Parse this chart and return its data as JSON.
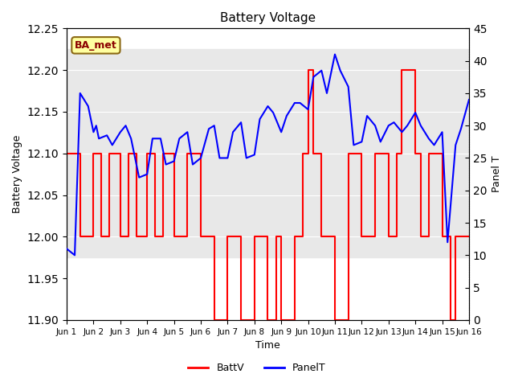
{
  "title": "Battery Voltage",
  "xlabel": "Time",
  "ylabel_left": "Battery Voltage",
  "ylabel_right": "Panel T",
  "ylim_left": [
    11.9,
    12.25
  ],
  "ylim_right": [
    0,
    45
  ],
  "yticks_left": [
    11.9,
    11.95,
    12.0,
    12.05,
    12.1,
    12.15,
    12.2,
    12.25
  ],
  "yticks_right": [
    0,
    5,
    10,
    15,
    20,
    25,
    30,
    35,
    40,
    45
  ],
  "xlim": [
    0,
    15
  ],
  "xtick_labels": [
    "Jun 1",
    "Jun 2",
    "Jun 3",
    "Jun 4",
    "Jun 5",
    "Jun 6",
    "Jun 7",
    "Jun 8",
    "Jun 9",
    "Jun 10",
    "Jun 11",
    "Jun 12",
    "Jun 13",
    "Jun 14",
    "Jun 15",
    "Jun 16"
  ],
  "xtick_positions": [
    0,
    1,
    2,
    3,
    4,
    5,
    6,
    7,
    8,
    9,
    10,
    11,
    12,
    13,
    14,
    15
  ],
  "batt_color": "#FF0000",
  "panel_color": "#0000FF",
  "bg_band_color": "#E8E8E8",
  "bg_band_ylim": [
    11.975,
    12.225
  ],
  "station_label": "BA_met",
  "station_label_color": "#8B0000",
  "station_label_bg": "#FFFFA0",
  "legend_loc": "lower center",
  "battv_x": [
    0.0,
    0.5,
    0.5,
    1.0,
    1.0,
    1.3,
    1.3,
    1.6,
    1.6,
    2.0,
    2.0,
    2.3,
    2.3,
    2.6,
    2.6,
    3.0,
    3.0,
    3.3,
    3.3,
    3.6,
    3.6,
    4.0,
    4.0,
    4.5,
    4.5,
    5.0,
    5.0,
    5.5,
    5.5,
    6.0,
    6.0,
    6.5,
    6.5,
    7.0,
    7.0,
    7.5,
    7.5,
    7.8,
    7.8,
    8.0,
    8.0,
    8.5,
    8.5,
    8.8,
    8.8,
    9.0,
    9.0,
    9.2,
    9.2,
    9.5,
    9.5,
    10.0,
    10.0,
    10.5,
    10.5,
    11.0,
    11.0,
    11.5,
    11.5,
    12.0,
    12.0,
    12.3,
    12.3,
    12.5,
    12.5,
    13.0,
    13.0,
    13.2,
    13.2,
    13.5,
    13.5,
    14.0,
    14.0,
    14.3,
    14.3,
    14.5,
    14.5,
    15.0
  ],
  "battv_y": [
    12.1,
    12.1,
    12.0,
    12.0,
    12.1,
    12.1,
    12.0,
    12.0,
    12.1,
    12.1,
    12.0,
    12.0,
    12.1,
    12.1,
    12.0,
    12.0,
    12.1,
    12.1,
    12.0,
    12.0,
    12.1,
    12.1,
    12.0,
    12.0,
    12.1,
    12.1,
    12.0,
    12.0,
    11.9,
    11.9,
    12.0,
    12.0,
    11.9,
    11.9,
    12.0,
    12.0,
    11.9,
    11.9,
    12.0,
    12.0,
    11.9,
    11.9,
    12.0,
    12.0,
    12.1,
    12.1,
    12.2,
    12.2,
    12.1,
    12.1,
    12.0,
    12.0,
    11.9,
    11.9,
    12.1,
    12.1,
    12.0,
    12.0,
    12.1,
    12.1,
    12.0,
    12.0,
    12.1,
    12.1,
    12.2,
    12.2,
    12.1,
    12.1,
    12.0,
    12.0,
    12.1,
    12.1,
    12.0,
    12.0,
    11.9,
    11.9,
    12.0,
    12.0
  ],
  "panelt_x": [
    0.0,
    0.3,
    0.5,
    0.8,
    1.0,
    1.1,
    1.2,
    1.5,
    1.7,
    2.0,
    2.2,
    2.4,
    2.7,
    3.0,
    3.2,
    3.5,
    3.7,
    4.0,
    4.2,
    4.5,
    4.7,
    5.0,
    5.3,
    5.5,
    5.7,
    6.0,
    6.2,
    6.5,
    6.7,
    7.0,
    7.2,
    7.5,
    7.7,
    8.0,
    8.2,
    8.5,
    8.7,
    9.0,
    9.2,
    9.5,
    9.7,
    10.0,
    10.2,
    10.5,
    10.7,
    11.0,
    11.2,
    11.5,
    11.7,
    12.0,
    12.2,
    12.5,
    12.7,
    13.0,
    13.2,
    13.5,
    13.7,
    14.0,
    14.2,
    14.5,
    14.7,
    15.0
  ],
  "panelt_y": [
    11.0,
    10.0,
    35.0,
    33.0,
    29.0,
    30.0,
    28.0,
    28.5,
    27.0,
    29.0,
    30.0,
    28.0,
    22.0,
    22.5,
    28.0,
    28.0,
    24.0,
    24.5,
    28.0,
    29.0,
    24.0,
    25.0,
    29.5,
    30.0,
    25.0,
    25.0,
    29.0,
    30.5,
    25.0,
    25.5,
    31.0,
    33.0,
    32.0,
    29.0,
    31.5,
    33.5,
    33.5,
    32.5,
    37.5,
    38.5,
    35.0,
    41.0,
    38.5,
    36.0,
    27.0,
    27.5,
    31.5,
    30.0,
    27.5,
    30.0,
    30.5,
    29.0,
    30.0,
    32.0,
    30.0,
    28.0,
    27.0,
    29.0,
    12.0,
    27.0,
    29.5,
    34.0
  ]
}
